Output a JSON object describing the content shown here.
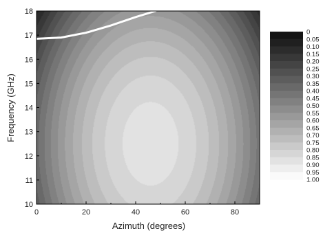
{
  "chart_data": {
    "type": "heatmap",
    "subtype": "filled-contour",
    "title": "",
    "xlabel": "Azimuth (degrees)",
    "ylabel": "Frequency (GHz)",
    "xlim": [
      0,
      90
    ],
    "ylim": [
      10,
      18
    ],
    "x_ticks": [
      0,
      20,
      40,
      60,
      80
    ],
    "y_ticks": [
      10,
      11,
      12,
      13,
      14,
      15,
      16,
      17,
      18
    ],
    "colormap": "gray",
    "colorbar_levels": [
      0,
      0.05,
      0.1,
      0.15,
      0.2,
      0.25,
      0.3,
      0.35,
      0.4,
      0.45,
      0.5,
      0.55,
      0.6,
      0.65,
      0.7,
      0.75,
      0.8,
      0.85,
      0.9,
      0.95,
      1.0
    ],
    "colorbar_labels": [
      "0",
      "0.05",
      "0.10",
      "0.15",
      "0.20",
      "0.25",
      "0.30",
      "0.35",
      "0.40",
      "0.45",
      "0.50",
      "0.55",
      "0.60",
      "0.65",
      "0.70",
      "0.75",
      "0.80",
      "0.85",
      "0.90",
      "0.95",
      "1.00"
    ],
    "peak": {
      "azimuth": 46,
      "frequency": 12.5,
      "value": 0.88
    },
    "boundary_curve": {
      "color": "#ffffff",
      "points": [
        [
          0,
          16.85
        ],
        [
          10,
          16.9
        ],
        [
          20,
          17.1
        ],
        [
          30,
          17.4
        ],
        [
          40,
          17.75
        ],
        [
          48,
          18.0
        ]
      ]
    }
  }
}
